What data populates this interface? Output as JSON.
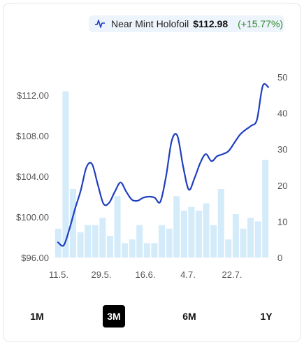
{
  "legend": {
    "icon": "price-line-icon",
    "name": "Near Mint Holofoil",
    "price": "$112.98",
    "change": "(+15.77%)"
  },
  "colors": {
    "line": "#1f3fbf",
    "bar": "#d4ebfa",
    "change": "#2e8b2e",
    "active_tab": "#000000"
  },
  "range_tabs": [
    {
      "label": "1M",
      "active": false
    },
    {
      "label": "3M",
      "active": true
    },
    {
      "label": "6M",
      "active": false
    },
    {
      "label": "1Y",
      "active": false
    }
  ],
  "chart_data": {
    "type": "line",
    "title": "",
    "xlabel": "",
    "ylabel": "",
    "x_ticks": [
      "11.5.",
      "29.5.",
      "16.6.",
      "4.7.",
      "22.7."
    ],
    "y_left": {
      "ticks": [
        "$96.00",
        "$100.00",
        "$104.00",
        "$108.00",
        "$112.00"
      ],
      "range": [
        96,
        113.8
      ]
    },
    "y_right": {
      "ticks": [
        "0",
        "10",
        "20",
        "30",
        "40",
        "50"
      ],
      "range": [
        0,
        50
      ]
    },
    "series": [
      {
        "kind": "line",
        "axis": "left",
        "values": [
          97.5,
          97.2,
          98.8,
          100.8,
          102.6,
          104.9,
          105.2,
          103.2,
          101.3,
          101.4,
          102.5,
          103.4,
          102.5,
          101.7,
          101.6,
          101.9,
          102.0,
          101.9,
          101.5,
          104.0,
          107.5,
          108.0,
          105.0,
          102.7,
          103.8,
          105.3,
          106.2,
          105.5,
          106.0,
          106.2,
          106.5,
          107.3,
          108.1,
          108.6,
          109.0,
          109.6,
          112.9,
          112.8
        ]
      },
      {
        "kind": "bar",
        "axis": "right",
        "values": [
          8,
          46,
          19,
          7,
          9,
          9,
          11,
          6,
          17,
          4,
          5,
          9,
          4,
          4,
          9,
          8,
          17,
          13,
          14,
          13,
          15,
          9,
          19,
          5,
          12,
          8,
          11,
          10,
          27
        ]
      }
    ],
    "grid": false,
    "legend_placement": "top-right"
  }
}
